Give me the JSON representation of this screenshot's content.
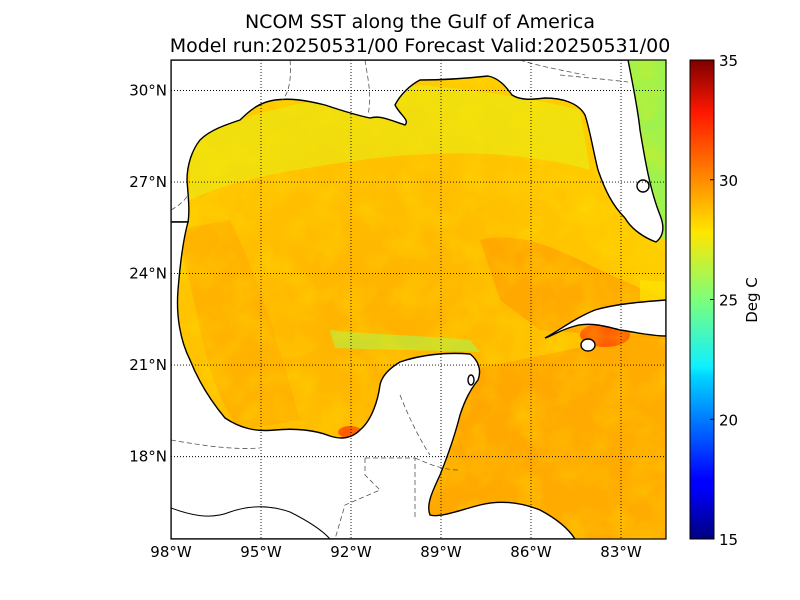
{
  "title": {
    "line1": "NCOM SST along the Gulf of America",
    "line2": "Model run:20250531/00 Forecast Valid:20250531/00"
  },
  "map": {
    "lon_range": [
      -98,
      -81.5
    ],
    "lat_range": [
      15.3,
      31
    ],
    "lon_ticks": [
      {
        "value": -98,
        "label": "98°W"
      },
      {
        "value": -95,
        "label": "95°W"
      },
      {
        "value": -92,
        "label": "92°W"
      },
      {
        "value": -89,
        "label": "89°W"
      },
      {
        "value": -86,
        "label": "86°W"
      },
      {
        "value": -83,
        "label": "83°W"
      }
    ],
    "lat_ticks": [
      {
        "value": 30,
        "label": "30°N"
      },
      {
        "value": 27,
        "label": "27°N"
      },
      {
        "value": 24,
        "label": "24°N"
      },
      {
        "value": 21,
        "label": "21°N"
      },
      {
        "value": 18,
        "label": "18°N"
      }
    ],
    "grid": true,
    "grid_style": "dotted"
  },
  "colorbar": {
    "label": "Deg C",
    "min": 15,
    "max": 35,
    "colormap": "jet",
    "ticks": [
      {
        "value": 35,
        "label": "35"
      },
      {
        "value": 30,
        "label": "30"
      },
      {
        "value": 25,
        "label": "25"
      },
      {
        "value": 20,
        "label": "20"
      },
      {
        "value": 15,
        "label": "15"
      }
    ]
  },
  "chart_data": {
    "type": "heatmap",
    "variable": "SST",
    "units": "Deg C",
    "range": [
      15,
      35
    ],
    "colors": {
      "land": "#ffffff",
      "coastline": "#000000",
      "warm_core": "#ff8c00",
      "gulf_interior": "#ffd700",
      "shelf_cool": "#b5f23c"
    }
  }
}
